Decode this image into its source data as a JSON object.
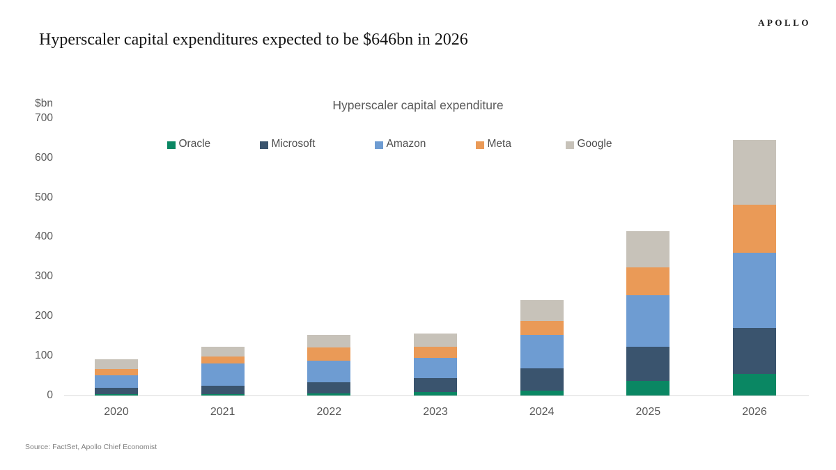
{
  "page": {
    "logo": "APOLLO",
    "title": "Hyperscaler capital expenditures expected to be $646bn in 2026",
    "source": "Source: FactSet, Apollo Chief Economist"
  },
  "chart_data": {
    "type": "bar",
    "stacked": true,
    "title": "Hyperscaler capital expenditure",
    "unit_label": "$bn",
    "xlabel": "",
    "ylabel": "$bn",
    "ylim": [
      0,
      700
    ],
    "ytick_step": 100,
    "grid": false,
    "legend_position": "top",
    "categories": [
      "2020",
      "2021",
      "2022",
      "2023",
      "2024",
      "2025",
      "2026"
    ],
    "series": [
      {
        "name": "Oracle",
        "color": "#0A8763",
        "values": [
          2,
          2,
          4,
          8,
          12,
          36,
          54
        ]
      },
      {
        "name": "Microsoft",
        "color": "#3A546E",
        "values": [
          17,
          21,
          28,
          35,
          56,
          87,
          116
        ]
      },
      {
        "name": "Amazon",
        "color": "#6E9CD2",
        "values": [
          32,
          57,
          56,
          51,
          84,
          129,
          190
        ]
      },
      {
        "name": "Meta",
        "color": "#EA9A57",
        "values": [
          16,
          17,
          32,
          29,
          36,
          71,
          122
        ]
      },
      {
        "name": "Google",
        "color": "#C7C2B9",
        "values": [
          24,
          25,
          33,
          33,
          53,
          92,
          164
        ]
      }
    ]
  }
}
